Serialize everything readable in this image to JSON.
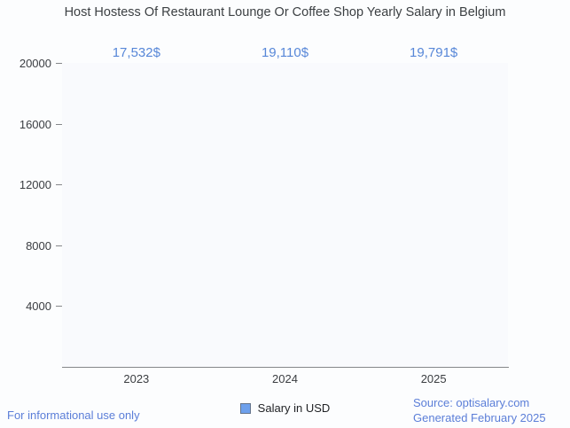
{
  "header": {
    "title": "Host Hostess Of Restaurant Lounge Or Coffee Shop Yearly Salary in Belgium"
  },
  "chart_data": {
    "type": "bar",
    "title": "Host Hostess Of Restaurant Lounge Or Coffee Shop Yearly Salary in Belgium",
    "categories": [
      "2023",
      "2024",
      "2025"
    ],
    "series": [
      {
        "name": "Salary in USD",
        "values": [
          17532,
          19110,
          19791
        ]
      }
    ],
    "value_labels": [
      "17,532$",
      "19,110$",
      "19,791$"
    ],
    "xlabel": "",
    "ylabel": "",
    "ylim": [
      0,
      20000
    ],
    "yticks": [
      4000,
      8000,
      12000,
      16000,
      20000
    ],
    "grid": true,
    "legend_position": "bottom-center"
  },
  "legend": {
    "label": "Salary in USD"
  },
  "footer": {
    "disclaimer": "For informational use only",
    "source_line1": "Source: optisalary.com",
    "source_line2": "Generated February 2025"
  },
  "colors": {
    "title_text": "#3c4043",
    "axis_text": "#3a3d41",
    "value_label_text": "#5787d8",
    "footer_text": "#5b7ed8",
    "axis_line": "#85878a",
    "gridline": "#e2e4e8",
    "plot_background": "#f9fafd",
    "page_background": "#fcfdfe",
    "bar_gradient_left": "#b7d9fb",
    "bar_gradient_mid": "#ffffff",
    "bar_gradient_right": "#6b94e9",
    "legend_marker_fill": "#6da0ec",
    "legend_marker_border": "#64748b"
  }
}
